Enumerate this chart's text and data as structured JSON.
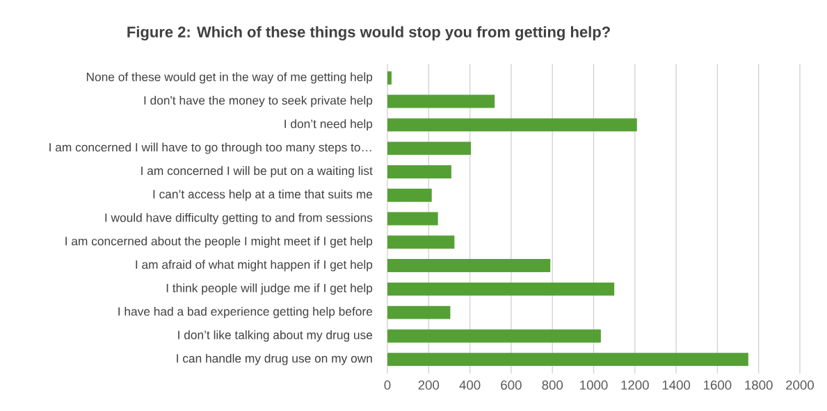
{
  "chart_data": {
    "type": "bar",
    "orientation": "horizontal",
    "title": "Figure 2: Which of these things would stop you from getting help?",
    "categories": [
      "None of these would get in the way of me getting help",
      "I don't have the money to seek private help",
      "I don’t need help",
      "I am concerned I will have to go through too many steps to…",
      "I am concerned I will be put on a waiting list",
      "I can’t access help at a time that suits me",
      "I would have difficulty getting to and from sessions",
      "I am concerned about the people I might meet if I get help",
      "I am afraid of what might happen if I get help",
      "I think people will judge me if I get help",
      "I have had a bad experience getting help before",
      "I don’t like talking about my drug use",
      "I can handle my drug use on my own"
    ],
    "values": [
      20,
      520,
      1210,
      405,
      310,
      215,
      245,
      325,
      790,
      1100,
      305,
      1035,
      1750
    ],
    "color": "#55a035",
    "xlim": [
      0,
      2000
    ],
    "xticks": [
      0,
      200,
      400,
      600,
      800,
      1000,
      1200,
      1400,
      1600,
      1800,
      2000
    ],
    "grid": "x"
  }
}
